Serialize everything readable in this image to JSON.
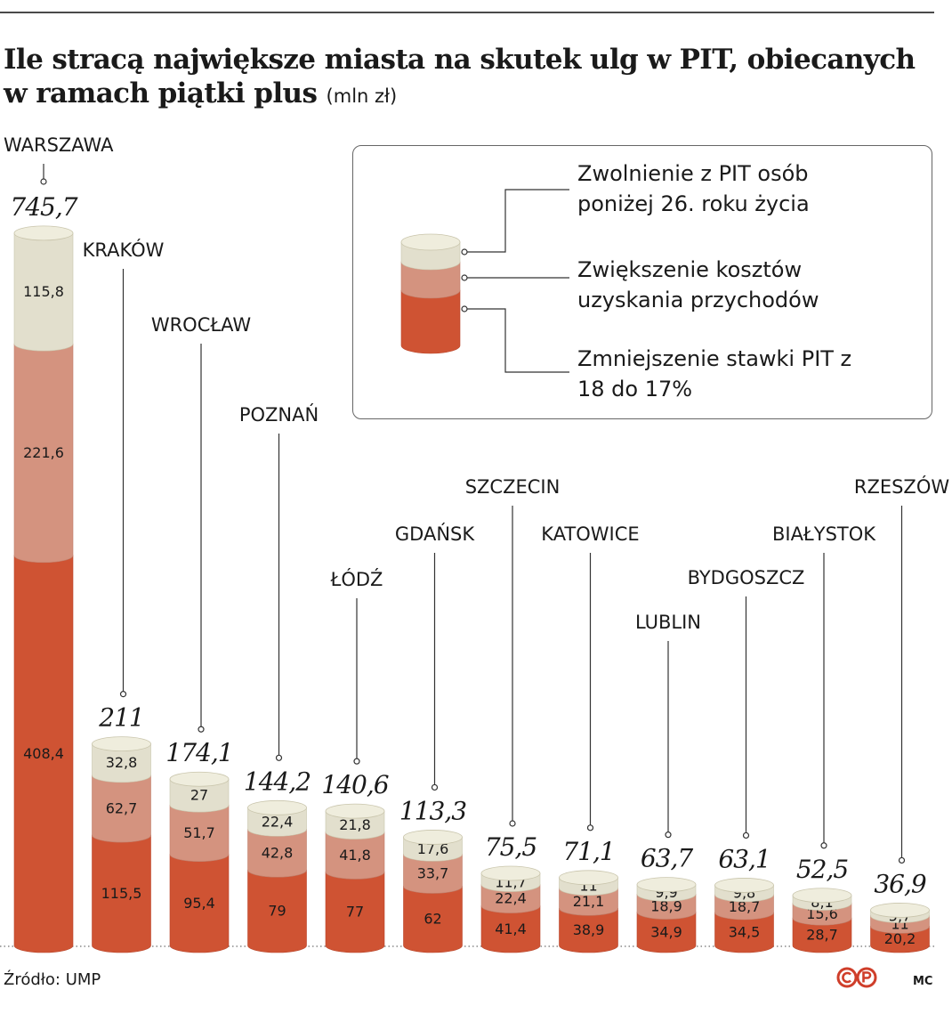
{
  "title": {
    "main": "Ile stracą największe miasta na skutek ulg w PIT, obiecanych w ramach piątki plus",
    "unit": "(mln zł)"
  },
  "legend": {
    "items": [
      {
        "key": "pit_under_26",
        "label": "Zwolnienie z PIT osób poniżej 26. roku życia",
        "color": "#e2dfcd"
      },
      {
        "key": "costs",
        "label": "Zwiększenie kosztów uzyskania przychodów",
        "color": "#d4937f"
      },
      {
        "key": "rate_cut",
        "label": "Zmniejszenie stawki PIT z 18 do 17%",
        "color": "#cf5333"
      }
    ]
  },
  "chart_data": {
    "type": "bar",
    "stacked": true,
    "categories": [
      "WARSZAWA",
      "KRAKÓW",
      "WROCŁAW",
      "POZNAŃ",
      "ŁÓDŹ",
      "GDAŃSK",
      "SZCZECIN",
      "KATOWICE",
      "LUBLIN",
      "BYDGOSZCZ",
      "BIAŁYSTOK",
      "RZESZÓW"
    ],
    "totals": [
      "745,7",
      "211",
      "174,1",
      "144,2",
      "140,6",
      "113,3",
      "75,5",
      "71,1",
      "63,7",
      "63,1",
      "52,5",
      "36,9"
    ],
    "series": [
      {
        "key": "rate_cut",
        "name": "Zmniejszenie stawki PIT z 18 do 17%",
        "values": [
          408.4,
          115.5,
          95.4,
          79,
          77,
          62,
          41.4,
          38.9,
          34.9,
          34.5,
          28.7,
          20.2
        ],
        "labels": [
          "408,4",
          "115,5",
          "95,4",
          "79",
          "77",
          "62",
          "41,4",
          "38,9",
          "34,9",
          "34,5",
          "28,7",
          "20,2"
        ]
      },
      {
        "key": "costs",
        "name": "Zwiększenie kosztów uzyskania przychodów",
        "values": [
          221.6,
          62.7,
          51.7,
          42.8,
          41.8,
          33.7,
          22.4,
          21.1,
          18.9,
          18.7,
          15.6,
          11
        ],
        "labels": [
          "221,6",
          "62,7",
          "51,7",
          "42,8",
          "41,8",
          "33,7",
          "22,4",
          "21,1",
          "18,9",
          "18,7",
          "15,6",
          "11"
        ]
      },
      {
        "key": "pit_under_26",
        "name": "Zwolnienie z PIT osób poniżej 26. roku życia",
        "values": [
          115.8,
          32.8,
          27,
          22.4,
          21.8,
          17.6,
          11.7,
          11,
          9.9,
          9.8,
          8.1,
          5.7
        ],
        "labels": [
          "115,8",
          "32,8",
          "27",
          "22,4",
          "21,8",
          "17,6",
          "11,7",
          "11",
          "9,9",
          "9,8",
          "8,1",
          "5,7"
        ]
      }
    ],
    "ylim": [
      0,
      745.7
    ],
    "grid": false
  },
  "footer": {
    "source": "Źródło: UMP",
    "author": "MC",
    "logo_icon": "cp-logo-icon"
  }
}
